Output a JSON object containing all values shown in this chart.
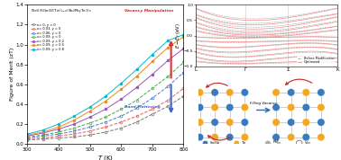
{
  "T_values": [
    300,
    350,
    400,
    450,
    500,
    550,
    600,
    650,
    700,
    750,
    800
  ],
  "series": [
    {
      "label": "x= 0, y = 0",
      "color": "#777777",
      "linestyle": "--",
      "marker": "o",
      "markerfill": "none",
      "values": [
        0.04,
        0.05,
        0.06,
        0.07,
        0.09,
        0.12,
        0.16,
        0.22,
        0.3,
        0.38,
        0.48
      ]
    },
    {
      "label": "x= 0.03, y = 0",
      "color": "#e06060",
      "linestyle": "--",
      "marker": "o",
      "markerfill": "none",
      "values": [
        0.05,
        0.06,
        0.08,
        0.1,
        0.13,
        0.17,
        0.22,
        0.28,
        0.35,
        0.44,
        0.56
      ]
    },
    {
      "label": "x= 0.06, y = 0",
      "color": "#5577cc",
      "linestyle": "--",
      "marker": "o",
      "markerfill": "none",
      "values": [
        0.06,
        0.08,
        0.1,
        0.13,
        0.17,
        0.22,
        0.28,
        0.36,
        0.46,
        0.58,
        0.72
      ]
    },
    {
      "label": "x= 0.09, y = 0",
      "color": "#44aa44",
      "linestyle": "--",
      "marker": "o",
      "markerfill": "none",
      "values": [
        0.07,
        0.09,
        0.12,
        0.16,
        0.21,
        0.27,
        0.35,
        0.44,
        0.56,
        0.68,
        0.82
      ]
    },
    {
      "label": "x= 0.09, y = 0.2",
      "color": "#9955bb",
      "linestyle": "-",
      "marker": "o",
      "markerfill": "full",
      "values": [
        0.08,
        0.11,
        0.15,
        0.2,
        0.27,
        0.35,
        0.45,
        0.57,
        0.7,
        0.84,
        0.96
      ]
    },
    {
      "label": "x= 0.09, y = 0.5",
      "color": "#ee8822",
      "linestyle": "-",
      "marker": "o",
      "markerfill": "full",
      "values": [
        0.09,
        0.12,
        0.17,
        0.24,
        0.33,
        0.43,
        0.55,
        0.68,
        0.83,
        0.97,
        1.08
      ]
    },
    {
      "label": "x= 0.09, y = 0.8",
      "color": "#00bbcc",
      "linestyle": "-",
      "marker": "o",
      "markerfill": "full",
      "values": [
        0.1,
        0.14,
        0.2,
        0.28,
        0.37,
        0.48,
        0.61,
        0.75,
        0.9,
        1.04,
        1.1
      ]
    }
  ],
  "ylim": [
    0.0,
    1.4
  ],
  "xlim": [
    300,
    800
  ],
  "ylabel": "Figure of Merit (zT)",
  "xlabel": "T (K)",
  "sn_color": "#3a7abf",
  "te_color": "#f5a623",
  "pb_color": "#aaaaaa",
  "vacancy_ec": "#555555",
  "bond_color": "#bbbbbb",
  "arrow_color": "#cc2222",
  "vacancy_manip_color": "#cc2222",
  "band_flatten_color": "#4466cc",
  "before_band_color": "#888888",
  "opt_band_color": "#ee7777"
}
